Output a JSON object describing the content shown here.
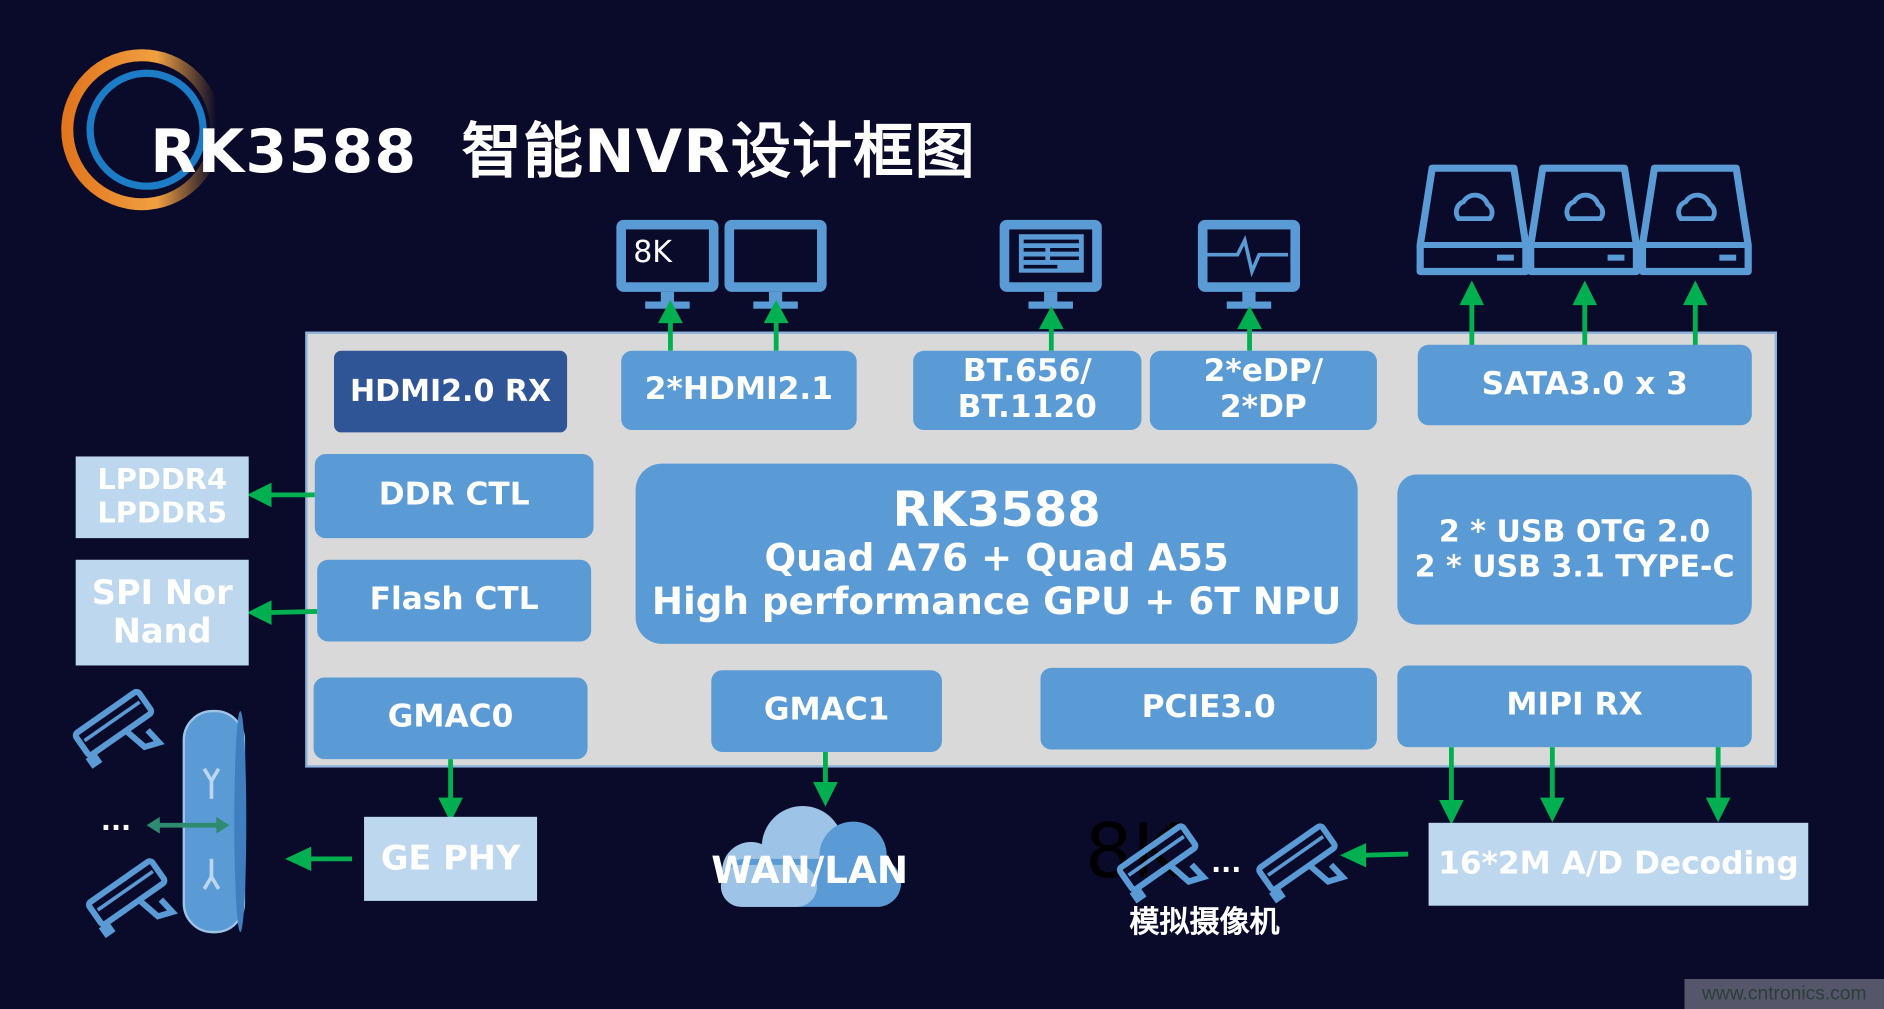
{
  "title": "RK3588  智能NVR设计框图",
  "colors": {
    "background": "#0a0b2a",
    "block": "#5b9bd5",
    "block_dark": "#2f5597",
    "block_light": "#bdd7ee",
    "panel": "#d9d9d9",
    "arrow": "#00b050",
    "accent": "#e8892b"
  },
  "monitor_label": "8K",
  "soc": {
    "name": "RK3588",
    "cpu": "Quad A76 + Quad A55",
    "gpu_npu": "High performance GPU + 6T NPU"
  },
  "blocks": {
    "hdmi_rx": "HDMI2.0 RX",
    "hdmi_tx": "2*HDMI2.1",
    "bt_1": "BT.656/",
    "bt_2": "BT.1120",
    "edp_1": "2*eDP/",
    "edp_2": "2*DP",
    "sata": "SATA3.0 x 3",
    "ddr": "DDR CTL",
    "flash": "Flash CTL",
    "usb_1": "2 * USB OTG 2.0",
    "usb_2": "2 * USB 3.1 TYPE-C",
    "gmac0": "GMAC0",
    "gmac1": "GMAC1",
    "pcie": "PCIE3.0",
    "mipi": "MIPI RX"
  },
  "external": {
    "lpddr_1": "LPDDR4",
    "lpddr_2": "LPDDR5",
    "spi_1": "SPI Nor",
    "spi_2": "Nand",
    "gephy": "GE PHY",
    "decoder": "16*2M A/D Decoding",
    "wan": "WAN/LAN",
    "analog_cams": "模拟摄像机",
    "ellipsis": "...",
    "stray_text": "8K"
  },
  "icons": [
    "logo-ring",
    "monitor-icon",
    "document-monitor-icon",
    "pulse-monitor-icon",
    "cloud-drive-icon",
    "security-camera-icon",
    "router-icon",
    "cloud-icon"
  ],
  "watermark": "www.cntronics.com"
}
